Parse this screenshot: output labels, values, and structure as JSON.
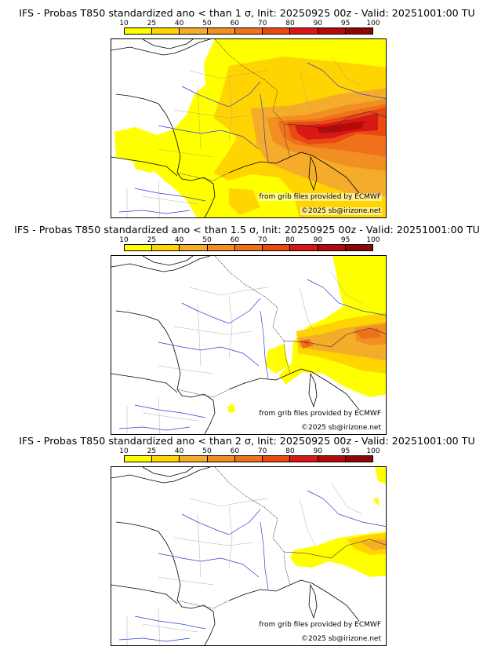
{
  "legend": {
    "ticks": [
      "10",
      "25",
      "40",
      "50",
      "60",
      "70",
      "80",
      "90",
      "95",
      "100"
    ],
    "colors": [
      "#ffff00",
      "#ffd400",
      "#f5ac2a",
      "#f28f22",
      "#f0711c",
      "#e84a12",
      "#d81717",
      "#b40a0a",
      "#8e0505"
    ]
  },
  "panels": [
    {
      "title": "IFS - Probas T850  standardized ano < than 1 σ, Init: 20250925 00z - Valid: 20251001:00 TU",
      "credit_source": "from grib files provided by ECMWF",
      "credit_copyright": "©2025 sb@irizone.net",
      "max_probability_pct": 90,
      "coverage": "broad"
    },
    {
      "title": "IFS - Probas T850  standardized ano < than 1.5 σ, Init: 20250925 00z - Valid: 20251001:00 TU",
      "credit_source": "from grib files provided by ECMWF",
      "credit_copyright": "©2025 sb@irizone.net",
      "max_probability_pct": 70,
      "coverage": "east"
    },
    {
      "title": "IFS - Probas T850  standardized ano < than 2 σ, Init: 20250925 00z - Valid: 20251001:00 TU",
      "credit_source": "from grib files provided by ECMWF",
      "credit_copyright": "©2025 sb@irizone.net",
      "max_probability_pct": 40,
      "coverage": "alps"
    }
  ]
}
